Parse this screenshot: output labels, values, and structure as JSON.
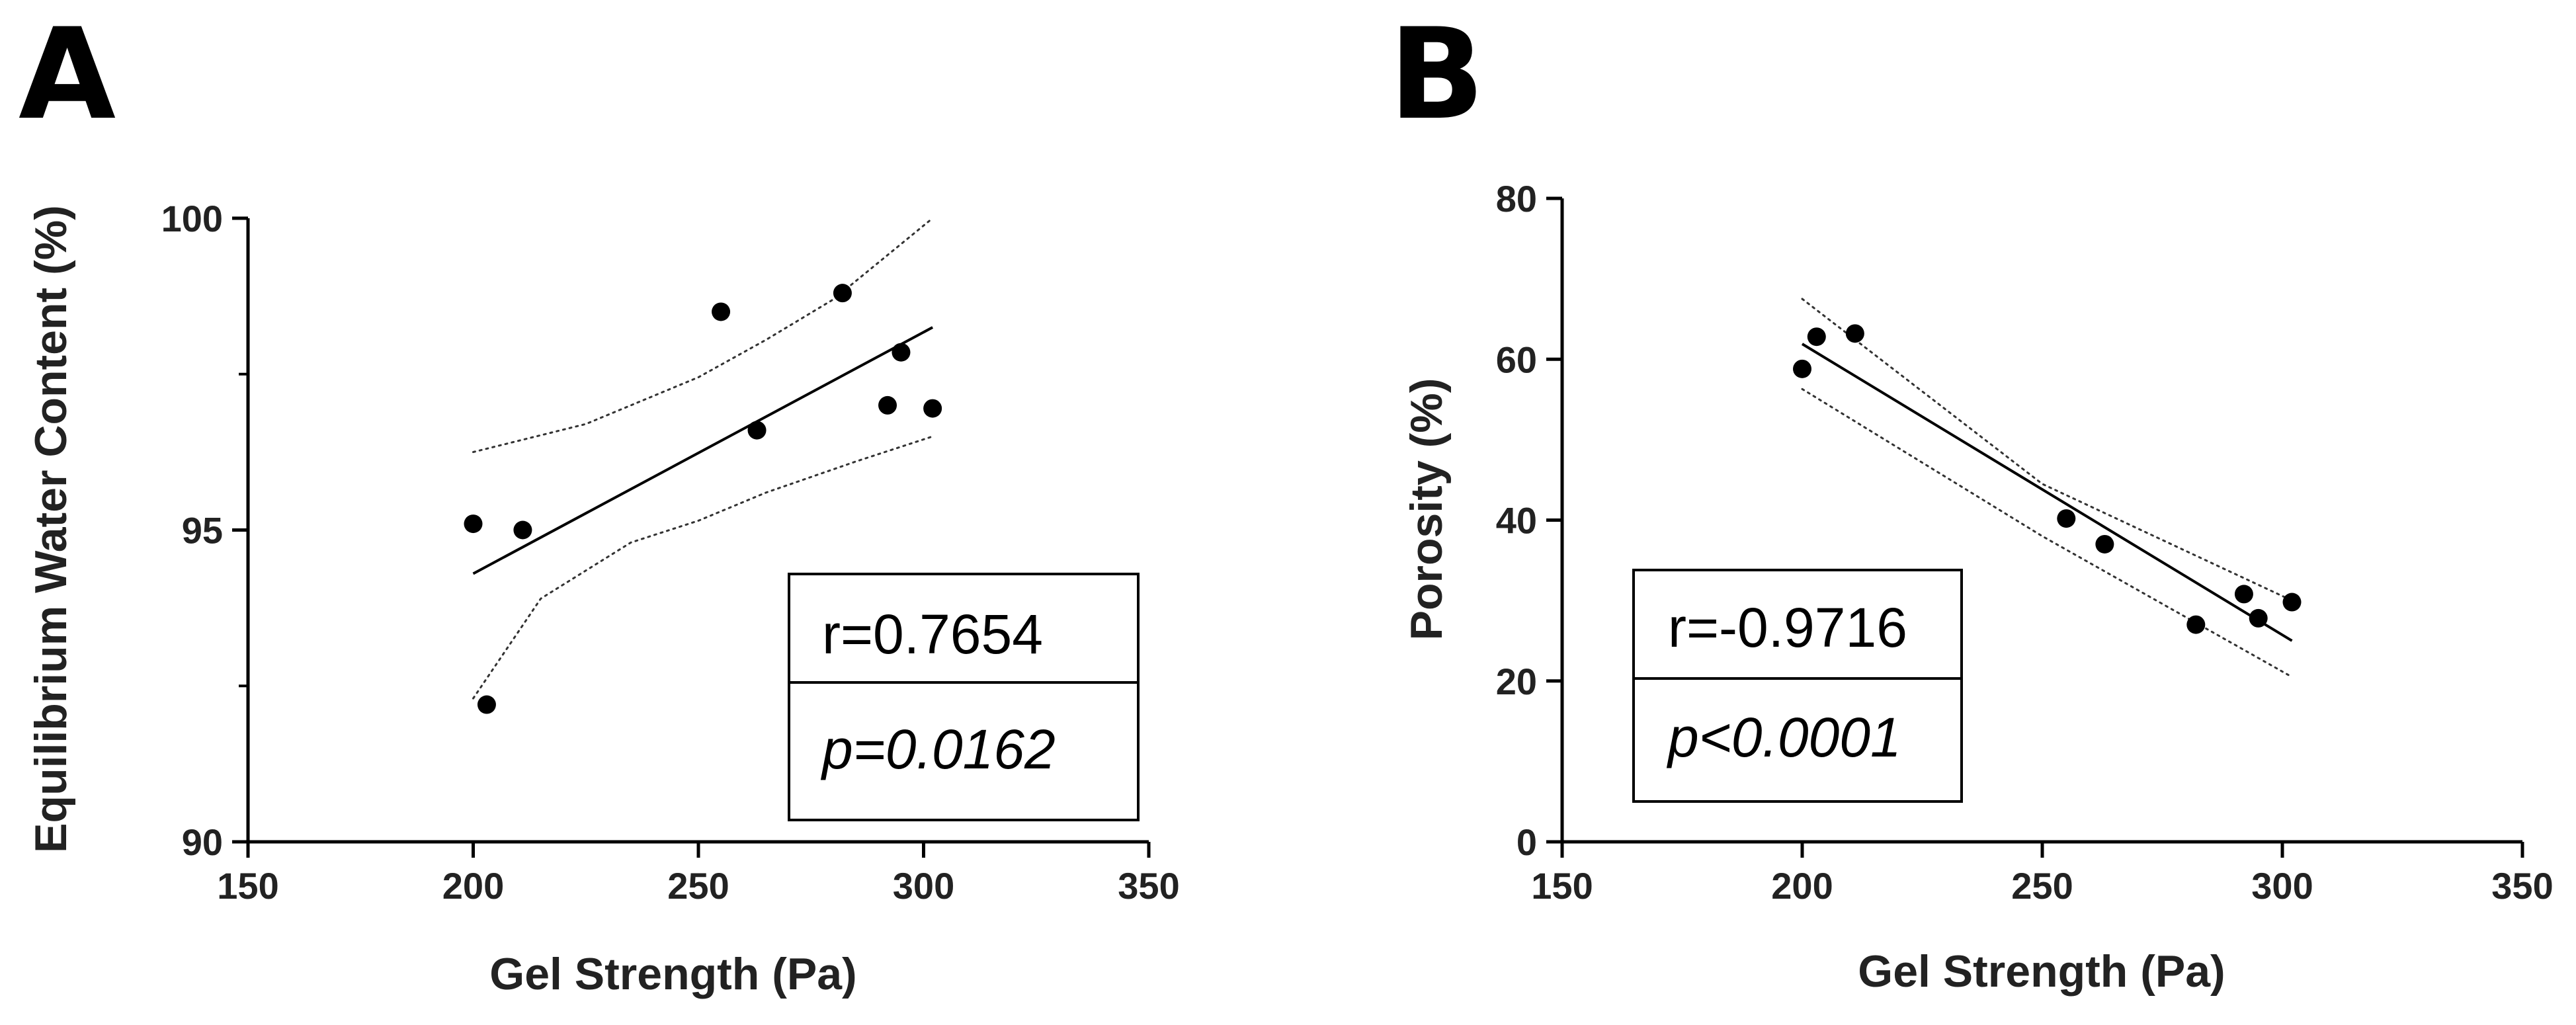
{
  "panels": {
    "a": {
      "letter": "A"
    },
    "b": {
      "letter": "B"
    }
  },
  "chart_data": [
    {
      "type": "scatter",
      "panel": "A",
      "title": "",
      "xlabel": "Gel Strength (Pa)",
      "ylabel": "Equilibrium Water Content (%)",
      "xlim": [
        150,
        350
      ],
      "ylim": [
        90,
        100
      ],
      "x_ticks": [
        150,
        200,
        250,
        300,
        350
      ],
      "y_ticks": [
        90,
        95,
        100
      ],
      "y_minor_ticks": [
        92.5,
        97.5
      ],
      "points": [
        {
          "x": 200,
          "y": 95.1
        },
        {
          "x": 203,
          "y": 92.2
        },
        {
          "x": 211,
          "y": 95.0
        },
        {
          "x": 255,
          "y": 98.5
        },
        {
          "x": 263,
          "y": 96.6
        },
        {
          "x": 282,
          "y": 98.8
        },
        {
          "x": 292,
          "y": 97.0
        },
        {
          "x": 295,
          "y": 97.85
        },
        {
          "x": 302,
          "y": 96.95
        }
      ],
      "fit_line": {
        "x": [
          200,
          302
        ],
        "y": [
          94.3,
          98.25
        ]
      },
      "ci_upper": {
        "x": [
          200,
          225,
          250,
          265,
          280,
          302
        ],
        "y": [
          96.25,
          96.7,
          97.45,
          98.05,
          98.7,
          100.0
        ]
      },
      "ci_lower": {
        "x": [
          200,
          215,
          235,
          250,
          265,
          285,
          302
        ],
        "y": [
          92.3,
          93.9,
          94.8,
          95.15,
          95.6,
          96.1,
          96.5
        ]
      },
      "stats": {
        "r_text": "r=0.7654",
        "p_text": "p=0.0162"
      },
      "grid": false,
      "legend": "none"
    },
    {
      "type": "scatter",
      "panel": "B",
      "title": "",
      "xlabel": "Gel Strength (Pa)",
      "ylabel": "Porosity (%)",
      "xlim": [
        150,
        350
      ],
      "ylim": [
        0,
        80
      ],
      "x_ticks": [
        150,
        200,
        250,
        300,
        350
      ],
      "y_ticks": [
        0,
        20,
        40,
        60,
        80
      ],
      "points": [
        {
          "x": 200,
          "y": 58.8
        },
        {
          "x": 203,
          "y": 62.8
        },
        {
          "x": 211,
          "y": 63.2
        },
        {
          "x": 255,
          "y": 40.2
        },
        {
          "x": 263,
          "y": 37.0
        },
        {
          "x": 282,
          "y": 27.0
        },
        {
          "x": 292,
          "y": 30.8
        },
        {
          "x": 295,
          "y": 27.8
        },
        {
          "x": 302,
          "y": 29.8
        }
      ],
      "fit_line": {
        "x": [
          200,
          302
        ],
        "y": [
          61.9,
          25.0
        ]
      },
      "ci_upper": {
        "x": [
          200,
          250,
          302
        ],
        "y": [
          67.5,
          44.5,
          30.0
        ]
      },
      "ci_lower": {
        "x": [
          200,
          250,
          302
        ],
        "y": [
          56.3,
          38.0,
          20.5
        ]
      },
      "stats": {
        "r_text": "r=-0.9716",
        "p_text": "p<0.0001"
      },
      "grid": false,
      "legend": "none"
    }
  ]
}
